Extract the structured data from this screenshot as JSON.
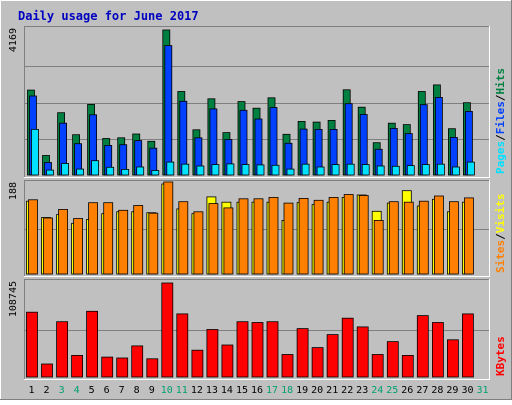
{
  "chart_data": {
    "type": "bar",
    "title": "Daily usage for June 2017",
    "categories": [
      "1",
      "2",
      "3",
      "4",
      "5",
      "6",
      "7",
      "8",
      "9",
      "10",
      "11",
      "12",
      "13",
      "14",
      "15",
      "16",
      "17",
      "18",
      "19",
      "20",
      "21",
      "22",
      "23",
      "24",
      "25",
      "26",
      "27",
      "28",
      "29",
      "30",
      "31"
    ],
    "weekend_categories": [
      "3",
      "4",
      "10",
      "11",
      "17",
      "18",
      "24",
      "25",
      "31"
    ],
    "colors": {
      "background": "#c0c0c0",
      "border_dark": "#808080",
      "title": "#0000c0",
      "hits": "#008040",
      "files": "#0040ff",
      "pages": "#00e0ff",
      "visits": "#ffff00",
      "sites": "#ff8000",
      "kbytes": "#ff0000",
      "weekday_label": "#000000",
      "weekend_label": "#00a070",
      "gridline": "#808080"
    },
    "panels": [
      {
        "id": "hits-files-pages",
        "max_label": "4169",
        "ymax": 4169,
        "legend": [
          {
            "text": "Hits",
            "color": "#008040"
          },
          {
            "text": "/",
            "color": "#000000"
          },
          {
            "text": "Files",
            "color": "#0040ff"
          },
          {
            "text": "/",
            "color": "#000000"
          },
          {
            "text": "Pages",
            "color": "#00e0ff"
          }
        ],
        "series": [
          {
            "name": "Hits",
            "color": "#008040",
            "values": [
              2440,
              560,
              1790,
              1160,
              2030,
              1050,
              1070,
              1180,
              970,
              4169,
              2400,
              1300,
              2190,
              1220,
              2110,
              1920,
              2220,
              1170,
              1540,
              1520,
              1570,
              2450,
              1950,
              930,
              1490,
              1450,
              2400,
              2590,
              1330,
              2080,
              0
            ]
          },
          {
            "name": "Files",
            "color": "#0040ff",
            "values": [
              2270,
              360,
              1490,
              900,
              1730,
              850,
              870,
              990,
              770,
              3720,
              2120,
              1070,
              1900,
              1020,
              1860,
              1610,
              1940,
              910,
              1320,
              1310,
              1310,
              2050,
              1740,
              740,
              1340,
              1190,
              2020,
              2230,
              1080,
              1830,
              0
            ]
          },
          {
            "name": "Pages",
            "color": "#00e0ff",
            "values": [
              1310,
              140,
              330,
              170,
              410,
              220,
              160,
              230,
              130,
              370,
              310,
              260,
              300,
              320,
              300,
              290,
              280,
              170,
              310,
              230,
              300,
              310,
              300,
              260,
              250,
              270,
              300,
              310,
              230,
              370,
              0
            ]
          }
        ]
      },
      {
        "id": "visits-sites",
        "max_label": "188",
        "ymax": 188,
        "legend": [
          {
            "text": "Visits",
            "color": "#ffff00"
          },
          {
            "text": "/",
            "color": "#000000"
          },
          {
            "text": "Sites",
            "color": "#ff8000"
          }
        ],
        "series": [
          {
            "name": "Visits",
            "color": "#ffff00",
            "values": [
              152,
              118,
              124,
              106,
              114,
              126,
              130,
              130,
              128,
              188,
              136,
              126,
              161,
              150,
              150,
              150,
              150,
              112,
              149,
              145,
              150,
              160,
              165,
              131,
              148,
              174,
              142,
              156,
              130,
              150,
              0
            ]
          },
          {
            "name": "Sites",
            "color": "#ff8000",
            "values": [
              155,
              117,
              135,
              116,
              149,
              149,
              133,
              143,
              127,
              211,
              151,
              130,
              147,
              138,
              157,
              157,
              160,
              148,
              158,
              154,
              160,
              166,
              164,
              112,
              151,
              150,
              152,
              163,
              151,
              159,
              0
            ]
          }
        ]
      },
      {
        "id": "kbytes",
        "max_label": "108745",
        "ymax": 108745,
        "legend": [
          {
            "text": "KBytes",
            "color": "#ff0000"
          }
        ],
        "series": [
          {
            "name": "KBytes",
            "color": "#ff0000",
            "values": [
              75000,
              15000,
              64000,
              25000,
              76000,
              23000,
              22000,
              36000,
              21000,
              108745,
              73000,
              31000,
              55000,
              37000,
              64000,
              63000,
              64000,
              26000,
              56000,
              34000,
              49000,
              68000,
              58000,
              26000,
              41000,
              25000,
              71000,
              63000,
              43000,
              73000,
              0
            ]
          }
        ]
      }
    ]
  }
}
